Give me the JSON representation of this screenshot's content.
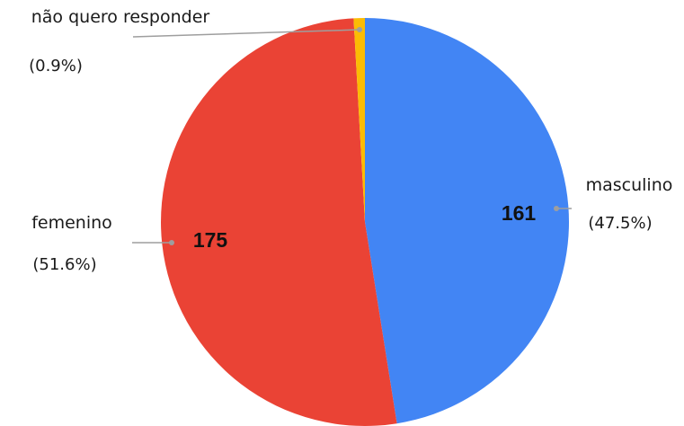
{
  "chart_data": {
    "type": "pie",
    "title": "",
    "start_angle_deg": 0,
    "direction": "clockwise",
    "slices": [
      {
        "name": "masculino",
        "value": 161,
        "value_label": "161",
        "percent_label": "(47.5%)",
        "color": "#4285f4"
      },
      {
        "name": "femenino",
        "value": 175,
        "value_label": "175",
        "percent_label": "(51.6%)",
        "color": "#ea4335"
      },
      {
        "name": "não quero responder",
        "value": 3,
        "value_label": "",
        "percent_label": "(0.9%)",
        "color": "#fbbc04"
      }
    ],
    "legend": "none",
    "label_style": "outside-with-leader-lines"
  }
}
